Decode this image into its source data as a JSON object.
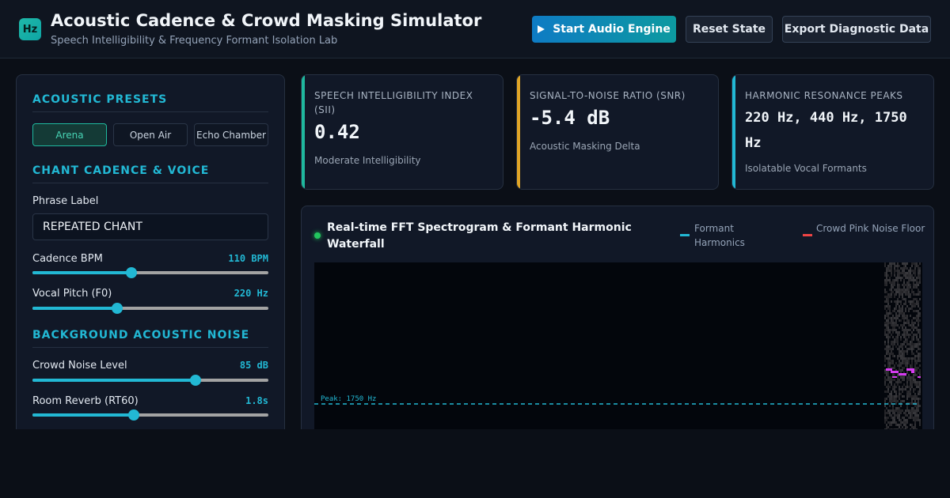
{
  "header": {
    "logo_text": "Hz",
    "title": "Acoustic Cadence & Crowd Masking Simulator",
    "subtitle": "Speech Intelligibility & Frequency Formant Isolation Lab",
    "start_label": "Start Audio Engine",
    "reset_label": "Reset State",
    "export_label": "Export Diagnostic Data"
  },
  "sidebar": {
    "presets_title": "ACOUSTIC PRESETS",
    "presets": [
      {
        "label": "Arena",
        "active": true
      },
      {
        "label": "Open Air",
        "active": false
      },
      {
        "label": "Echo Chamber",
        "active": false
      }
    ],
    "cadence_title": "CHANT CADENCE & VOICE",
    "phrase_label": "Phrase Label",
    "phrase_value": "REPEATED CHANT",
    "sliders": [
      {
        "label": "Cadence BPM",
        "value_text": "110 BPM",
        "fraction": 0.42
      },
      {
        "label": "Vocal Pitch (F0)",
        "value_text": "220 Hz",
        "fraction": 0.36
      },
      {
        "label": "Crowd Noise Level",
        "value_text": "85 dB",
        "fraction": 0.69
      },
      {
        "label": "Room Reverb (RT60)",
        "value_text": "1.8s",
        "fraction": 0.43
      }
    ],
    "noise_title": "BACKGROUND ACOUSTIC NOISE"
  },
  "metrics": [
    {
      "label": "SPEECH INTELLIGIBILITY INDEX (SII)",
      "value": "0.42",
      "desc": "Moderate Intelligibility",
      "accent": "#1fb89e"
    },
    {
      "label": "SIGNAL-TO-NOISE RATIO (SNR)",
      "value": "-5.4 dB",
      "desc": "Acoustic Masking Delta",
      "accent": "#e0a526"
    },
    {
      "label": "HARMONIC RESONANCE PEAKS",
      "value": "220 Hz, 440 Hz, 1750 Hz",
      "desc": "Isolatable Vocal Formants",
      "accent": "#22b8d4"
    }
  ],
  "spectrogram": {
    "title": "Real-time FFT Spectrogram & Formant Harmonic Waterfall",
    "legend": [
      {
        "label": "Formant Harmonics",
        "color": "#22b8d4"
      },
      {
        "label": "Crowd Pink Noise Floor",
        "color": "#ef4444"
      }
    ],
    "peak_label": "Peak: 1750 Hz",
    "formant_color": "#d63af0"
  }
}
